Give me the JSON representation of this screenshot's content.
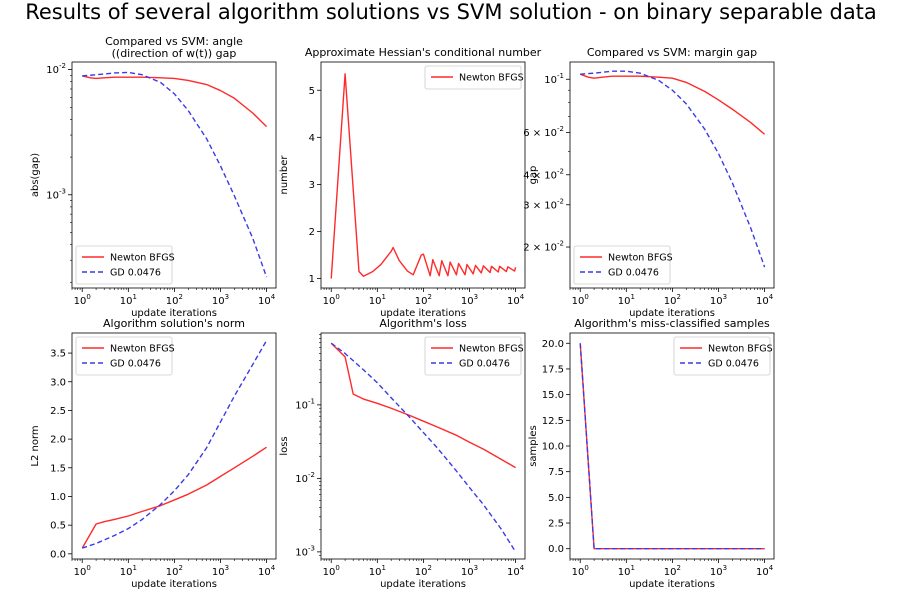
{
  "figure": {
    "suptitle": "Results of several algorithm solutions vs SVM solution - on binary separable data",
    "colors": {
      "newton": "#ff2a2a",
      "gd": "#3a3ae8",
      "axis": "#000000"
    }
  },
  "chart_data": [
    {
      "type": "line",
      "title": "Compared vs SVM: angle",
      "title2": "((direction of w(t)) gap",
      "xlabel": "update iterations",
      "ylabel": "abs(gap)",
      "xscale": "log",
      "yscale": "log",
      "xlim": [
        0.6,
        16000
      ],
      "ylim": [
        0.00018,
        0.0115
      ],
      "xticks": [
        1,
        10,
        100,
        1000,
        10000
      ],
      "xticklabels": [
        "10^0",
        "10^1",
        "10^2",
        "10^3",
        "10^4"
      ],
      "yticks": [
        0.01,
        0.001
      ],
      "yticklabels": [
        "10^-2",
        "10^-3"
      ],
      "legend": "lower-left",
      "series": [
        {
          "name": "Newton BFGS",
          "style": "solid",
          "color": "#ff2a2a",
          "x": [
            1,
            1.5,
            2,
            3,
            5,
            10,
            20,
            50,
            100,
            200,
            500,
            1000,
            2000,
            5000,
            10000
          ],
          "y": [
            0.0089,
            0.0086,
            0.0085,
            0.0086,
            0.0087,
            0.0087,
            0.0087,
            0.0086,
            0.0085,
            0.0082,
            0.0076,
            0.0068,
            0.0059,
            0.0045,
            0.0035
          ]
        },
        {
          "name": "GD 0.0476",
          "style": "dashed",
          "color": "#3a3ae8",
          "x": [
            1,
            2,
            5,
            10,
            20,
            50,
            100,
            200,
            500,
            1000,
            2000,
            5000,
            10000
          ],
          "y": [
            0.0089,
            0.0091,
            0.0094,
            0.0095,
            0.0091,
            0.0079,
            0.0064,
            0.0047,
            0.0028,
            0.0017,
            0.00098,
            0.00045,
            0.00022
          ]
        }
      ]
    },
    {
      "type": "line",
      "title": "Approximate Hessian's conditional number",
      "xlabel": "update iterations",
      "ylabel": "number",
      "xscale": "log",
      "yscale": "linear",
      "xlim": [
        0.6,
        16000
      ],
      "ylim": [
        0.8,
        5.6
      ],
      "xticks": [
        1,
        10,
        100,
        1000,
        10000
      ],
      "xticklabels": [
        "10^0",
        "10^1",
        "10^2",
        "10^3",
        "10^4"
      ],
      "yticks": [
        1,
        2,
        3,
        4,
        5
      ],
      "yticklabels": [
        "1",
        "2",
        "3",
        "4",
        "5"
      ],
      "legend": "upper-right",
      "series": [
        {
          "name": "Newton BFGS",
          "style": "solid",
          "color": "#ff2a2a",
          "x": [
            1,
            2,
            4,
            5,
            8,
            12,
            20,
            22,
            30,
            45,
            60,
            90,
            100,
            140,
            160,
            220,
            250,
            340,
            380,
            520,
            580,
            800,
            880,
            1200,
            1350,
            1800,
            2000,
            2800,
            3000,
            4200,
            4500,
            6300,
            6800,
            9500,
            10000
          ],
          "y": [
            1.0,
            5.35,
            1.15,
            1.05,
            1.15,
            1.3,
            1.58,
            1.66,
            1.38,
            1.16,
            1.08,
            1.5,
            1.52,
            1.06,
            1.4,
            1.06,
            1.38,
            1.06,
            1.35,
            1.08,
            1.32,
            1.08,
            1.3,
            1.1,
            1.28,
            1.12,
            1.27,
            1.13,
            1.26,
            1.14,
            1.26,
            1.15,
            1.25,
            1.16,
            1.24
          ]
        }
      ]
    },
    {
      "type": "line",
      "title": "Compared vs SVM: margin gap",
      "xlabel": "update iterations",
      "ylabel": "gap",
      "xscale": "log",
      "yscale": "log",
      "xlim": [
        0.6,
        16000
      ],
      "ylim": [
        0.0135,
        0.118
      ],
      "xticks": [
        1,
        10,
        100,
        1000,
        10000
      ],
      "xticklabels": [
        "10^0",
        "10^1",
        "10^2",
        "10^3",
        "10^4"
      ],
      "yticks": [
        0.1,
        0.06,
        0.04,
        0.03,
        0.02
      ],
      "yticklabels": [
        "10^-1",
        "6 × 10^-2",
        "4 × 10^-2",
        "3 × 10^-2",
        "2 × 10^-2"
      ],
      "legend": "lower-left",
      "series": [
        {
          "name": "Newton BFGS",
          "style": "solid",
          "color": "#ff2a2a",
          "x": [
            1,
            1.5,
            2,
            3,
            5,
            10,
            20,
            50,
            100,
            200,
            500,
            1000,
            2000,
            5000,
            10000
          ],
          "y": [
            0.105,
            0.102,
            0.101,
            0.102,
            0.103,
            0.103,
            0.103,
            0.102,
            0.101,
            0.097,
            0.089,
            0.082,
            0.075,
            0.066,
            0.059
          ]
        },
        {
          "name": "GD 0.0476",
          "style": "dashed",
          "color": "#3a3ae8",
          "x": [
            1,
            2,
            5,
            10,
            20,
            50,
            100,
            200,
            500,
            1000,
            2000,
            5000,
            10000
          ],
          "y": [
            0.105,
            0.106,
            0.108,
            0.108,
            0.106,
            0.099,
            0.09,
            0.079,
            0.062,
            0.049,
            0.037,
            0.024,
            0.0165
          ]
        }
      ]
    },
    {
      "type": "line",
      "title": "Algorithm solution's norm",
      "xlabel": "update iterations",
      "ylabel": "L2 norm",
      "xscale": "log",
      "yscale": "linear",
      "xlim": [
        0.6,
        16000
      ],
      "ylim": [
        -0.09,
        3.85
      ],
      "xticks": [
        1,
        10,
        100,
        1000,
        10000
      ],
      "xticklabels": [
        "10^0",
        "10^1",
        "10^2",
        "10^3",
        "10^4"
      ],
      "yticks": [
        0,
        0.5,
        1,
        1.5,
        2,
        2.5,
        3,
        3.5
      ],
      "yticklabels": [
        "0.0",
        "0.5",
        "1.0",
        "1.5",
        "2.0",
        "2.5",
        "3.0",
        "3.5"
      ],
      "legend": "upper-left",
      "series": [
        {
          "name": "Newton BFGS",
          "style": "solid",
          "color": "#ff2a2a",
          "x": [
            1,
            2,
            3,
            5,
            10,
            20,
            50,
            100,
            200,
            500,
            1000,
            2000,
            5000,
            10000
          ],
          "y": [
            0.1,
            0.52,
            0.56,
            0.6,
            0.66,
            0.74,
            0.84,
            0.94,
            1.04,
            1.2,
            1.35,
            1.5,
            1.7,
            1.86
          ]
        },
        {
          "name": "GD 0.0476",
          "style": "dashed",
          "color": "#3a3ae8",
          "x": [
            1,
            2,
            5,
            10,
            20,
            50,
            100,
            200,
            500,
            1000,
            2000,
            5000,
            10000
          ],
          "y": [
            0.1,
            0.18,
            0.32,
            0.44,
            0.6,
            0.86,
            1.1,
            1.38,
            1.85,
            2.3,
            2.75,
            3.3,
            3.72
          ]
        }
      ]
    },
    {
      "type": "line",
      "title": "Algorithm's loss",
      "xlabel": "update iterations",
      "ylabel": "loss",
      "xscale": "log",
      "yscale": "log",
      "xlim": [
        0.6,
        16000
      ],
      "ylim": [
        0.0008,
        0.95
      ],
      "xticks": [
        1,
        10,
        100,
        1000,
        10000
      ],
      "xticklabels": [
        "10^0",
        "10^1",
        "10^2",
        "10^3",
        "10^4"
      ],
      "yticks": [
        0.1,
        0.01,
        0.001
      ],
      "yticklabels": [
        "10^-1",
        "10^-2",
        "10^-3"
      ],
      "legend": "upper-right",
      "series": [
        {
          "name": "Newton BFGS",
          "style": "solid",
          "color": "#ff2a2a",
          "x": [
            1,
            2,
            3,
            5,
            10,
            20,
            50,
            100,
            200,
            500,
            1000,
            2000,
            5000,
            10000
          ],
          "y": [
            0.69,
            0.45,
            0.14,
            0.12,
            0.105,
            0.09,
            0.072,
            0.06,
            0.05,
            0.039,
            0.031,
            0.025,
            0.018,
            0.014
          ]
        },
        {
          "name": "GD 0.0476",
          "style": "dashed",
          "color": "#3a3ae8",
          "x": [
            1,
            2,
            5,
            10,
            20,
            50,
            100,
            200,
            500,
            1000,
            2000,
            5000,
            10000
          ],
          "y": [
            0.69,
            0.5,
            0.3,
            0.2,
            0.125,
            0.068,
            0.042,
            0.026,
            0.013,
            0.0075,
            0.0044,
            0.002,
            0.001
          ]
        }
      ]
    },
    {
      "type": "line",
      "title": "Algorithm's miss-classified samples",
      "xlabel": "update iterations",
      "ylabel": "samples",
      "xscale": "log",
      "yscale": "linear",
      "xlim": [
        0.6,
        16000
      ],
      "ylim": [
        -1,
        21
      ],
      "xticks": [
        1,
        10,
        100,
        1000,
        10000
      ],
      "xticklabels": [
        "10^0",
        "10^1",
        "10^2",
        "10^3",
        "10^4"
      ],
      "yticks": [
        0,
        2.5,
        5,
        7.5,
        10,
        12.5,
        15,
        17.5,
        20
      ],
      "yticklabels": [
        "0.0",
        "2.5",
        "5.0",
        "7.5",
        "10.0",
        "12.5",
        "15.0",
        "17.5",
        "20.0"
      ],
      "legend": "upper-right",
      "series": [
        {
          "name": "Newton BFGS",
          "style": "solid",
          "color": "#ff2a2a",
          "x": [
            1,
            2,
            10,
            100,
            1000,
            10000
          ],
          "y": [
            20,
            0,
            0,
            0,
            0,
            0
          ]
        },
        {
          "name": "GD 0.0476",
          "style": "dashed",
          "color": "#3a3ae8",
          "x": [
            1,
            2,
            10,
            100,
            1000,
            10000
          ],
          "y": [
            20,
            0,
            0,
            0,
            0,
            0
          ]
        }
      ]
    }
  ]
}
